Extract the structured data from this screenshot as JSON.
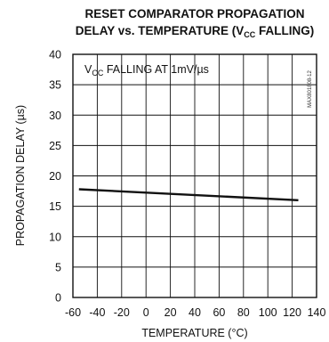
{
  "chart_data": {
    "type": "line",
    "title_line1": "RESET COMPARATOR PROPAGATION",
    "title_line2_pre": "DELAY vs. TEMPERATURE (V",
    "title_line2_sub": "CC",
    "title_line2_post": " FALLING)",
    "xlabel": "TEMPERATURE (°C)",
    "ylabel": "PROPAGATION DELAY (µs)",
    "annotation_pre": "V",
    "annotation_sub": "CC",
    "annotation_post": " FALLING AT 1mV/µs",
    "part_code": "MAX801808-12",
    "xlim": [
      -60,
      140
    ],
    "ylim": [
      0,
      40
    ],
    "x_ticks": [
      -60,
      -40,
      -20,
      0,
      20,
      40,
      60,
      80,
      100,
      120,
      140
    ],
    "x_tick_labels": [
      "-60",
      "-40",
      "-20",
      "0",
      "20",
      "40",
      "60",
      "80",
      "100",
      "120",
      "140"
    ],
    "y_ticks": [
      0,
      5,
      10,
      15,
      20,
      25,
      30,
      35,
      40
    ],
    "y_tick_labels": [
      "0",
      "5",
      "10",
      "15",
      "20",
      "25",
      "30",
      "35",
      "40"
    ],
    "grid": true,
    "series": [
      {
        "x": [
          -55,
          125
        ],
        "y": [
          17.8,
          16.0
        ]
      }
    ]
  }
}
